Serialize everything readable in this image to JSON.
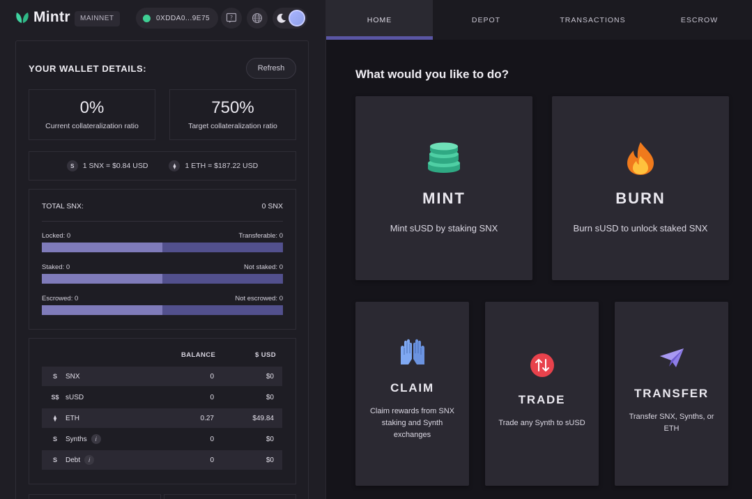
{
  "header": {
    "app_name": "Mintr",
    "network": "MAINNET",
    "wallet_address": "0XDDA0...9E75"
  },
  "nav": {
    "tabs": [
      {
        "label": "HOME",
        "active": true
      },
      {
        "label": "DEPOT",
        "active": false
      },
      {
        "label": "TRANSACTIONS",
        "active": false
      },
      {
        "label": "ESCROW",
        "active": false
      }
    ]
  },
  "wallet": {
    "title": "YOUR WALLET DETAILS:",
    "refresh_label": "Refresh",
    "current_ratio": {
      "value": "0%",
      "label": "Current collateralization ratio"
    },
    "target_ratio": {
      "value": "750%",
      "label": "Target collateralization ratio"
    },
    "prices": {
      "snx_icon": "S",
      "snx": "1 SNX = $0.84 USD",
      "eth_icon": "⧫",
      "eth": "1 ETH = $187.22 USD"
    },
    "total": {
      "label": "TOTAL SNX:",
      "value": "0 SNX"
    },
    "bars": [
      {
        "left": "Locked: 0",
        "right": "Transferable: 0",
        "fill_fraction": 0.5
      },
      {
        "left": "Staked: 0",
        "right": "Not staked: 0",
        "fill_fraction": 0.5
      },
      {
        "left": "Escrowed: 0",
        "right": "Not escrowed: 0",
        "fill_fraction": 0.5
      }
    ],
    "balance_table": {
      "col_balance": "BALANCE",
      "col_usd": "$ USD",
      "rows": [
        {
          "icon": "S",
          "name": "SNX",
          "balance": "0",
          "usd": "$0",
          "info": false
        },
        {
          "icon": "S$",
          "name": "sUSD",
          "balance": "0",
          "usd": "$0",
          "info": false
        },
        {
          "icon": "⧫",
          "name": "ETH",
          "balance": "0.27",
          "usd": "$49.84",
          "info": false
        },
        {
          "icon": "S",
          "name": "Synths",
          "balance": "0",
          "usd": "$0",
          "info": true,
          "info_glyph": "i"
        },
        {
          "icon": "S",
          "name": "Debt",
          "balance": "0",
          "usd": "$0",
          "info": true,
          "info_glyph": "i"
        }
      ]
    }
  },
  "main": {
    "prompt": "What would you like to do?",
    "actions": {
      "mint": {
        "title": "MINT",
        "desc": "Mint sUSD by staking SNX",
        "icon": "coin-stack-icon"
      },
      "burn": {
        "title": "BURN",
        "desc": "Burn sUSD to unlock staked SNX",
        "icon": "fire-icon"
      },
      "claim": {
        "title": "CLAIM",
        "desc": "Claim rewards from SNX staking and Synth exchanges",
        "icon": "open-hands-icon"
      },
      "trade": {
        "title": "TRADE",
        "desc": "Trade any Synth to sUSD",
        "icon": "swap-arrows-icon"
      },
      "transfer": {
        "title": "TRANSFER",
        "desc": "Transfer SNX, Synths, or ETH",
        "icon": "paper-plane-icon"
      }
    }
  },
  "colors": {
    "accent": "#5a56a4",
    "bar_fill": "#7f7bba",
    "bar_track": "#52508d",
    "status_dot": "#3fcf94"
  }
}
